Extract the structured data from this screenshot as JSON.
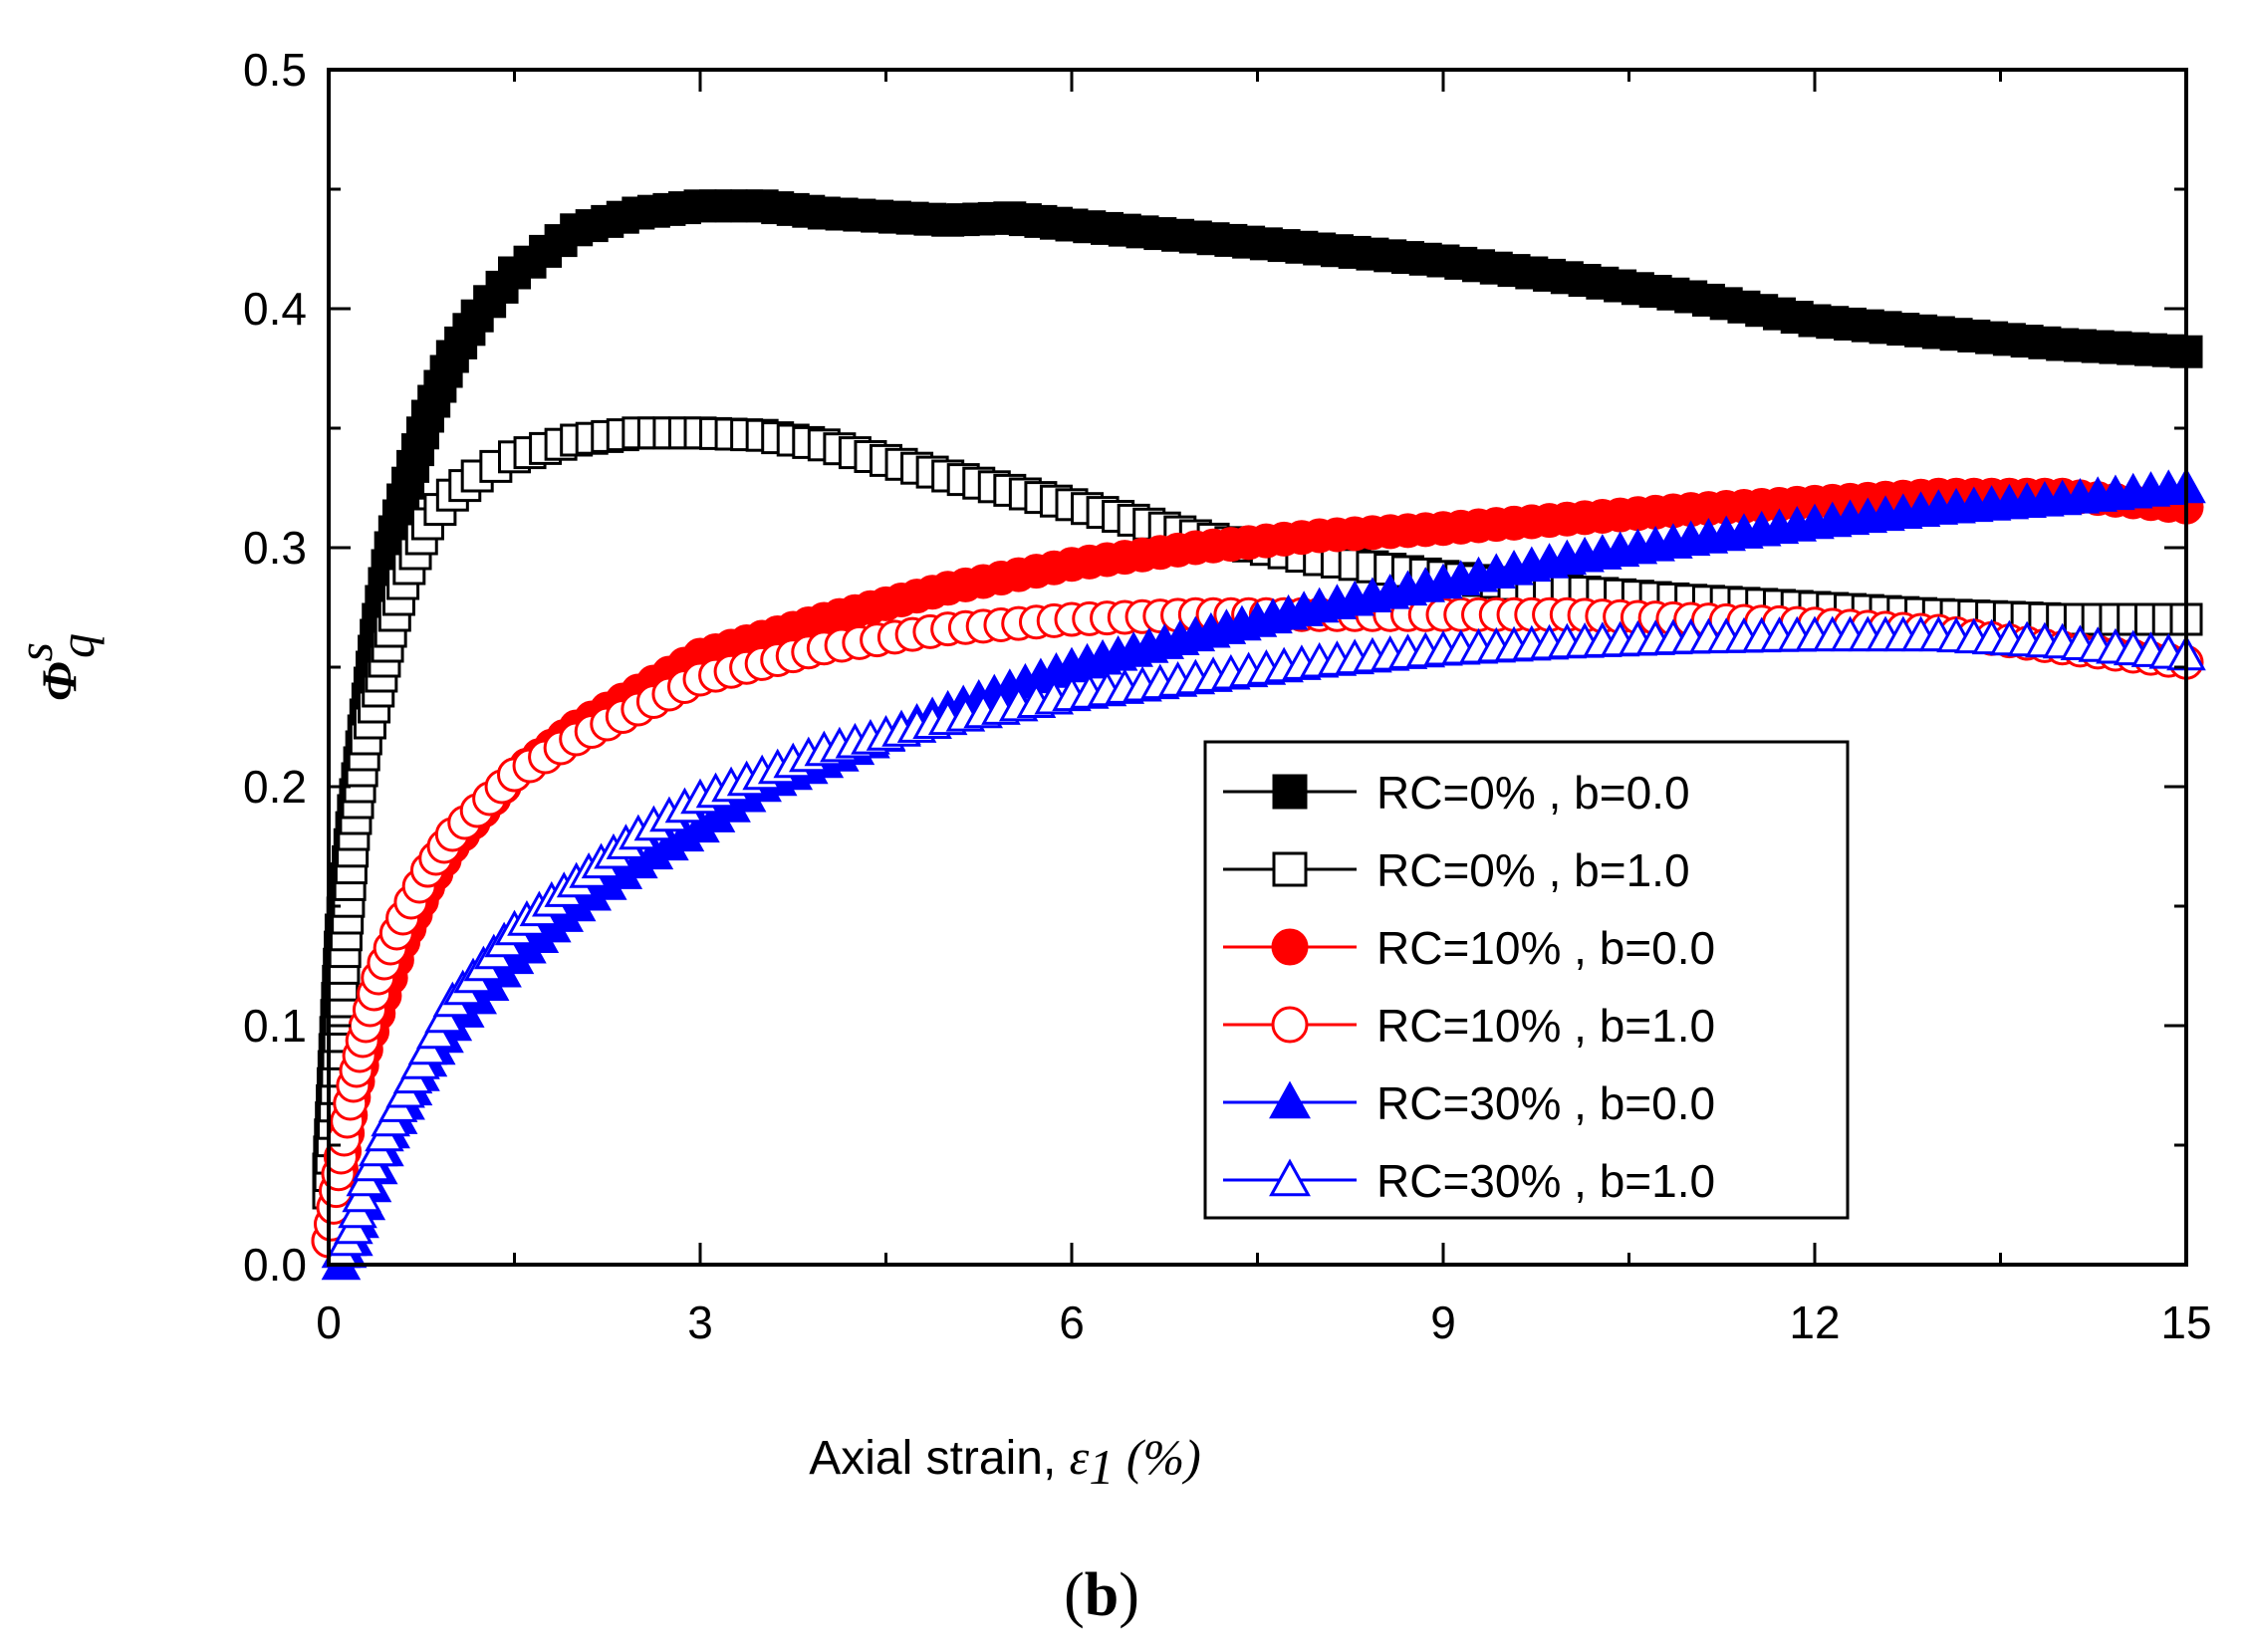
{
  "chart_data": {
    "type": "line",
    "panel_label_open": "(",
    "panel_label_letter": "b",
    "panel_label_close": ")",
    "xlabel_text": "Axial strain, ",
    "xlabel_symbol": "ε",
    "xlabel_subscript": "1",
    "xlabel_unit": " (%)",
    "ylabel_symbol": "Φ",
    "ylabel_superscript": "s",
    "ylabel_subscript": "q",
    "xlim": [
      0,
      15
    ],
    "ylim": [
      0,
      0.5
    ],
    "xticks": [
      "0",
      "3",
      "6",
      "9",
      "12",
      "15"
    ],
    "yticks": [
      "0.0",
      "0.1",
      "0.2",
      "0.3",
      "0.4",
      "0.5"
    ],
    "grid": false,
    "legend_position": "lower-right",
    "series": [
      {
        "name": "RC=0% , b=0.0",
        "color": "#000000",
        "marker": "square",
        "filled": true,
        "x": [
          0,
          0.1,
          0.2,
          0.3,
          0.4,
          0.5,
          0.6,
          0.8,
          1.0,
          1.2,
          1.5,
          2.0,
          2.5,
          3.0,
          3.5,
          4.0,
          5.0,
          5.5,
          6.0,
          7.0,
          8.0,
          9.0,
          10.0,
          11.0,
          12.0,
          13.0,
          14.0,
          15.0
        ],
        "y": [
          0.04,
          0.14,
          0.19,
          0.23,
          0.27,
          0.3,
          0.32,
          0.355,
          0.38,
          0.397,
          0.415,
          0.433,
          0.44,
          0.443,
          0.443,
          0.44,
          0.437,
          0.438,
          0.435,
          0.43,
          0.425,
          0.42,
          0.413,
          0.405,
          0.395,
          0.39,
          0.385,
          0.382
        ]
      },
      {
        "name": "RC=0% , b=1.0",
        "color": "#000000",
        "marker": "square",
        "filled": false,
        "x": [
          0,
          0.1,
          0.2,
          0.3,
          0.4,
          0.5,
          0.6,
          0.8,
          1.0,
          1.2,
          1.5,
          2.0,
          2.5,
          3.0,
          3.5,
          4.0,
          5.0,
          6.0,
          7.0,
          8.0,
          9.0,
          10.0,
          11.0,
          12.0,
          13.0,
          14.0,
          15.0
        ],
        "y": [
          0.03,
          0.11,
          0.18,
          0.22,
          0.24,
          0.265,
          0.285,
          0.31,
          0.322,
          0.33,
          0.338,
          0.345,
          0.348,
          0.348,
          0.347,
          0.343,
          0.33,
          0.318,
          0.305,
          0.295,
          0.288,
          0.282,
          0.278,
          0.275,
          0.272,
          0.27,
          0.27
        ]
      },
      {
        "name": "RC=10% , b=0.0",
        "color": "#ff0000",
        "marker": "circle",
        "filled": true,
        "x": [
          0,
          0.1,
          0.2,
          0.3,
          0.4,
          0.6,
          0.8,
          1.0,
          1.5,
          2.0,
          3.0,
          4.0,
          5.0,
          6.0,
          7.0,
          8.0,
          9.0,
          10.0,
          11.0,
          12.0,
          13.0,
          14.0,
          15.0
        ],
        "y": [
          0.01,
          0.04,
          0.07,
          0.09,
          0.105,
          0.135,
          0.158,
          0.175,
          0.205,
          0.225,
          0.255,
          0.27,
          0.283,
          0.293,
          0.3,
          0.305,
          0.308,
          0.312,
          0.316,
          0.319,
          0.322,
          0.322,
          0.317
        ]
      },
      {
        "name": "RC=10% , b=1.0",
        "color": "#ff0000",
        "marker": "circle",
        "filled": false,
        "x": [
          0,
          0.1,
          0.2,
          0.3,
          0.4,
          0.6,
          0.8,
          1.0,
          1.5,
          2.0,
          3.0,
          4.0,
          5.0,
          6.0,
          7.0,
          8.0,
          9.0,
          10.0,
          11.0,
          12.0,
          13.0,
          14.0,
          15.0
        ],
        "y": [
          0.01,
          0.045,
          0.075,
          0.1,
          0.12,
          0.145,
          0.165,
          0.18,
          0.205,
          0.22,
          0.245,
          0.258,
          0.266,
          0.27,
          0.272,
          0.272,
          0.272,
          0.272,
          0.27,
          0.268,
          0.265,
          0.258,
          0.252
        ]
      },
      {
        "name": "RC=30% , b=0.0",
        "color": "#0000ff",
        "marker": "triangle",
        "filled": true,
        "x": [
          0.1,
          0.2,
          0.3,
          0.5,
          0.8,
          1.0,
          1.5,
          2.0,
          2.5,
          3.0,
          3.5,
          4.0,
          5.0,
          6.0,
          7.0,
          8.0,
          9.0,
          10.0,
          11.0,
          12.0,
          13.0,
          14.0,
          15.0
        ],
        "y": [
          0.0,
          0.01,
          0.025,
          0.055,
          0.085,
          0.1,
          0.128,
          0.15,
          0.168,
          0.183,
          0.2,
          0.21,
          0.232,
          0.25,
          0.263,
          0.275,
          0.285,
          0.295,
          0.303,
          0.31,
          0.316,
          0.32,
          0.325
        ]
      },
      {
        "name": "RC=30% , b=1.0",
        "color": "#0000ff",
        "marker": "triangle",
        "filled": false,
        "x": [
          0.1,
          0.2,
          0.3,
          0.5,
          0.8,
          1.0,
          1.5,
          2.0,
          2.5,
          3.0,
          3.5,
          4.0,
          5.0,
          6.0,
          7.0,
          8.0,
          9.0,
          10.0,
          11.0,
          12.0,
          13.0,
          14.0,
          15.0
        ],
        "y": [
          0.005,
          0.015,
          0.035,
          0.06,
          0.09,
          0.11,
          0.14,
          0.16,
          0.18,
          0.195,
          0.205,
          0.215,
          0.228,
          0.238,
          0.245,
          0.252,
          0.257,
          0.26,
          0.262,
          0.263,
          0.263,
          0.26,
          0.255
        ]
      }
    ]
  }
}
